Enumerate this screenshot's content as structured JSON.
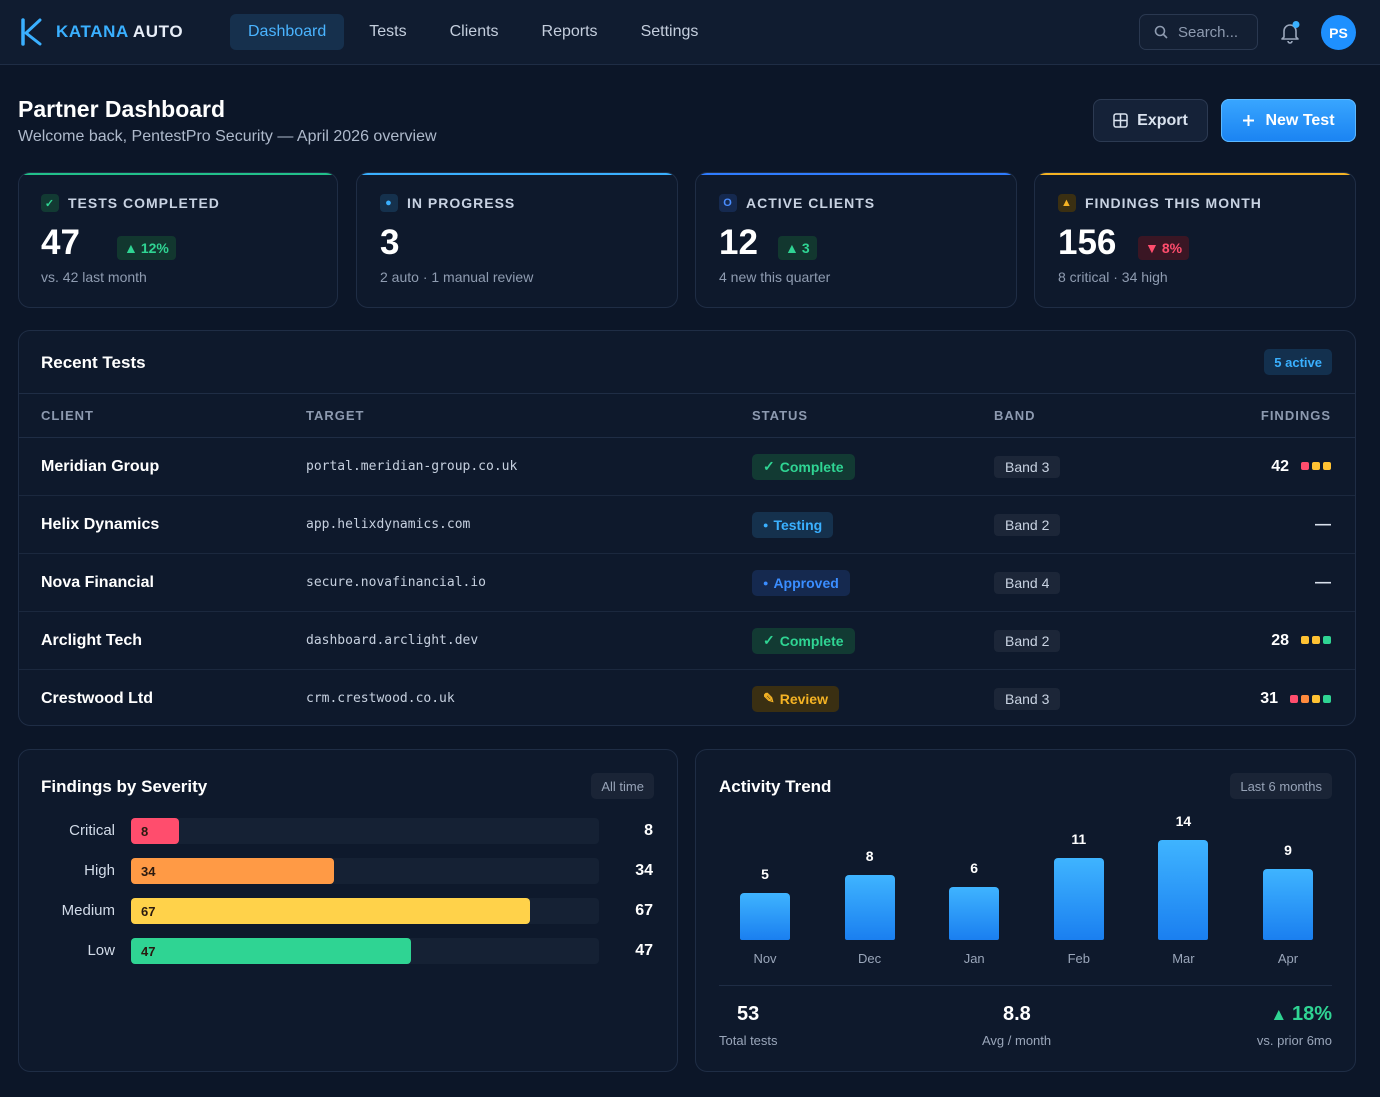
{
  "brand": {
    "name_a": "KATANA",
    "name_b": "AUTO"
  },
  "nav": [
    {
      "label": "Dashboard",
      "active": true
    },
    {
      "label": "Tests",
      "active": false
    },
    {
      "label": "Clients",
      "active": false
    },
    {
      "label": "Reports",
      "active": false
    },
    {
      "label": "Settings",
      "active": false
    }
  ],
  "search": {
    "placeholder": "Search..."
  },
  "user": {
    "initials": "PS"
  },
  "header": {
    "title": "Partner Dashboard",
    "subtitle": "Welcome back, PentestPro Security — April 2026 overview",
    "export_label": "Export",
    "new_label": "New Test"
  },
  "stats": [
    {
      "label": "TESTS COMPLETED",
      "value": "47",
      "delta": "12%",
      "delta_dir": "up",
      "foot": "vs. 42 last month",
      "accent": "#22c08a",
      "icon": "check-icon"
    },
    {
      "label": "IN PROGRESS",
      "value": "3",
      "delta": "",
      "foot": "2 auto · 1 manual review",
      "accent": "#3ab0ff",
      "icon": "dot-icon"
    },
    {
      "label": "ACTIVE CLIENTS",
      "value": "12",
      "delta": "3",
      "delta_dir": "up",
      "foot": "4 new this quarter",
      "accent": "#2f7cff",
      "icon": "circle-icon"
    },
    {
      "label": "FINDINGS THIS MONTH",
      "value": "156",
      "delta": "8%",
      "delta_dir": "down",
      "foot": "8 critical · 34 high",
      "accent": "#f5b324",
      "icon": "warning-icon"
    }
  ],
  "recent": {
    "title": "Recent Tests",
    "badge": "5 active",
    "columns": [
      "CLIENT",
      "TARGET",
      "STATUS",
      "BAND",
      "FINDINGS"
    ],
    "rows": [
      {
        "client": "Meridian Group",
        "target": "portal.meridian-group.co.uk",
        "status": "Complete",
        "status_kind": "complete",
        "band": "Band 3",
        "findings": "42",
        "dots": [
          "#ff4d6d",
          "#ffc233",
          "#ffc233"
        ]
      },
      {
        "client": "Helix Dynamics",
        "target": "app.helixdynamics.com",
        "status": "Testing",
        "status_kind": "testing",
        "band": "Band 2",
        "findings": "—",
        "dots": []
      },
      {
        "client": "Nova Financial",
        "target": "secure.novafinancial.io",
        "status": "Approved",
        "status_kind": "approved",
        "band": "Band 4",
        "findings": "—",
        "dots": []
      },
      {
        "client": "Arclight Tech",
        "target": "dashboard.arclight.dev",
        "status": "Complete",
        "status_kind": "complete",
        "band": "Band 2",
        "findings": "28",
        "dots": [
          "#ffc233",
          "#ffc233",
          "#2fd493"
        ]
      },
      {
        "client": "Crestwood Ltd",
        "target": "crm.crestwood.co.uk",
        "status": "Review",
        "status_kind": "review",
        "band": "Band 3",
        "findings": "31",
        "dots": [
          "#ff4d6d",
          "#ff8a3d",
          "#ffc233",
          "#2fd493"
        ]
      }
    ]
  },
  "severity": {
    "title": "Findings by Severity",
    "badge": "All time",
    "max": 78.5,
    "items": [
      {
        "label": "Critical",
        "value": 8,
        "color": "#ff4d6d"
      },
      {
        "label": "High",
        "value": 34,
        "color": "#ff9a45"
      },
      {
        "label": "Medium",
        "value": 67,
        "color": "#ffd24a"
      },
      {
        "label": "Low",
        "value": 47,
        "color": "#2fd493"
      }
    ]
  },
  "chart_data": {
    "type": "bar",
    "title": "Activity Trend",
    "badge": "Last 6 months",
    "categories": [
      "Nov",
      "Dec",
      "Jan",
      "Feb",
      "Mar",
      "Apr"
    ],
    "values": [
      5,
      8,
      6,
      11,
      14,
      9
    ],
    "summary": [
      {
        "value": "53",
        "label": "Total tests"
      },
      {
        "value": "8.8",
        "label": "Avg / month"
      },
      {
        "value": "18%",
        "label": "vs. prior 6mo"
      }
    ]
  }
}
